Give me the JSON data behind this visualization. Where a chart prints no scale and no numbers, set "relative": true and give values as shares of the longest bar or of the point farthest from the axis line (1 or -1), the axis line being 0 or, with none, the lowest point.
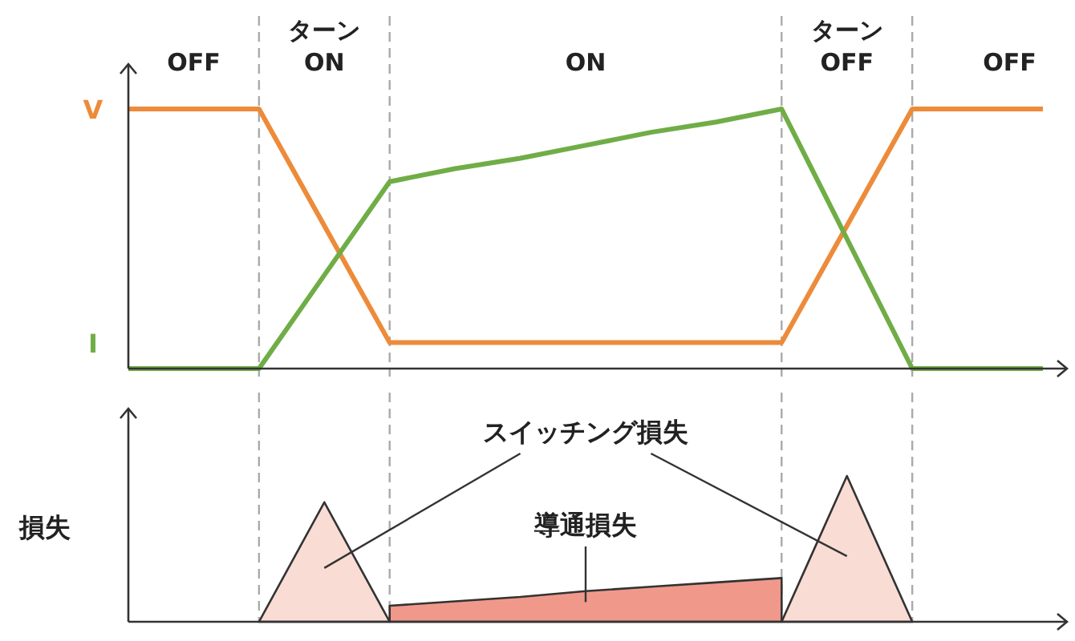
{
  "chart_data": [
    {
      "type": "line",
      "relative": true,
      "line_style": "solid",
      "categories": [
        null,
        null,
        null,
        null,
        null,
        null,
        null,
        null,
        null,
        null,
        null,
        null,
        null,
        null,
        null
      ],
      "series": [
        {
          "name": "V",
          "color": "#ed8b3a",
          "values": [
            1,
            1,
            1,
            0.55,
            0.1,
            0.1,
            0.1,
            0.1,
            0.1,
            0.1,
            0.1,
            0.55,
            1,
            1,
            1
          ]
        },
        {
          "name": "I",
          "color": "#70ad47",
          "values": [
            0,
            0,
            0,
            0.36,
            0.72,
            0.77,
            0.81,
            0.86,
            0.91,
            0.95,
            1,
            0.5,
            0,
            0,
            0
          ]
        }
      ],
      "annotations": [
        "OFF",
        "ターン\nON",
        "ON",
        "ターン\nOFF",
        "OFF"
      ],
      "grid": "x"
    },
    {
      "type": "area",
      "relative": true,
      "ylabel": "損失",
      "categories": [
        null,
        null,
        null,
        null,
        null,
        null,
        null,
        null,
        null,
        null,
        null,
        null,
        null,
        null,
        null
      ],
      "series": [
        {
          "name": "スイッチング損失",
          "color": "#f9dcd4",
          "values": [
            null,
            null,
            0,
            0.82,
            0,
            null,
            null,
            null,
            null,
            null,
            0,
            1,
            0,
            null,
            null
          ]
        },
        {
          "name": "導通損失",
          "color": "#f0998a",
          "values": [
            null,
            null,
            null,
            null,
            0.11,
            0.14,
            0.17,
            0.21,
            0.24,
            0.27,
            0.3,
            null,
            null,
            null,
            null
          ]
        }
      ],
      "grid": "x"
    }
  ]
}
